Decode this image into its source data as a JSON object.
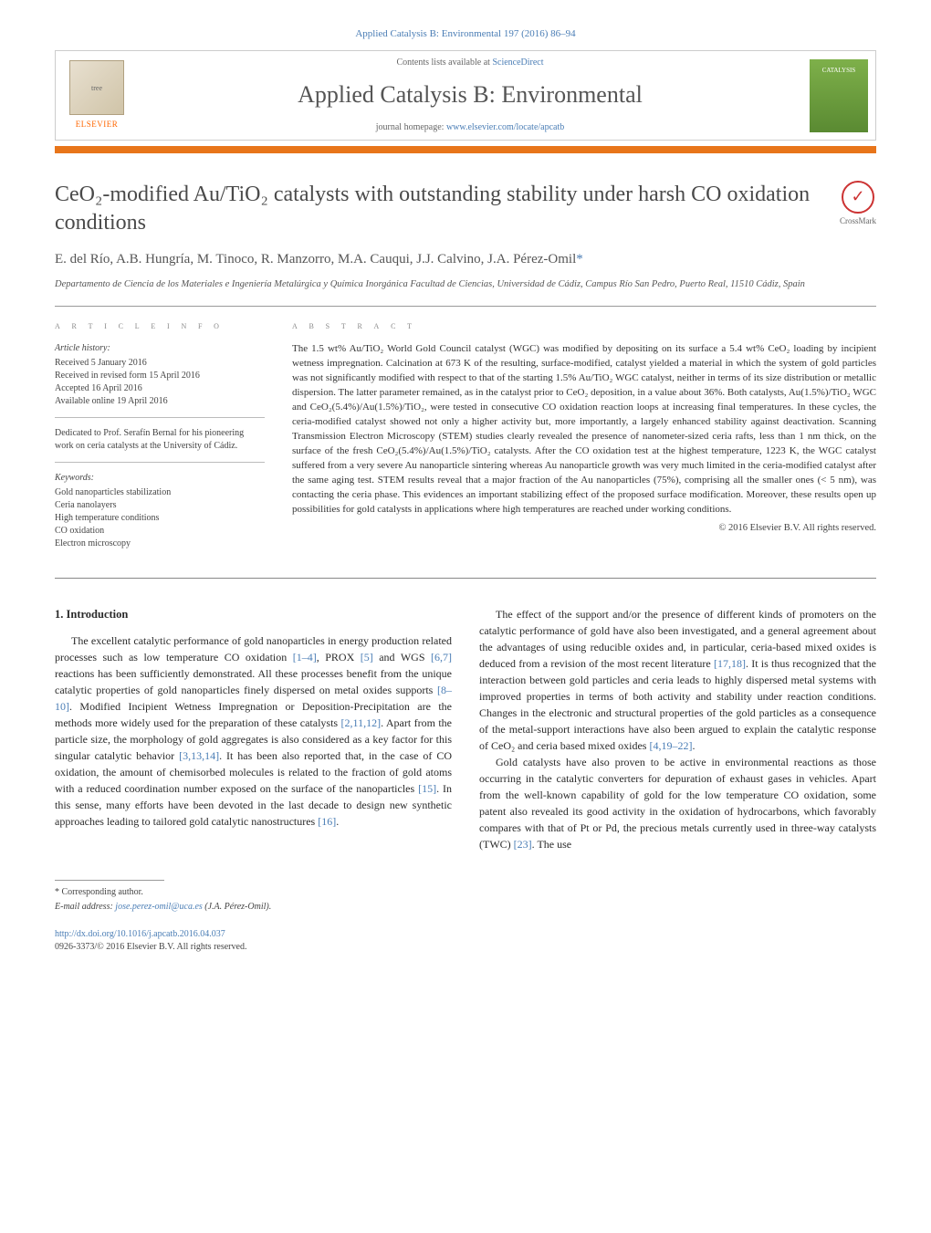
{
  "journal_ref": "Applied Catalysis B: Environmental 197 (2016) 86–94",
  "header": {
    "contents_prefix": "Contents lists available at ",
    "contents_link": "ScienceDirect",
    "journal_title": "Applied Catalysis B: Environmental",
    "homepage_prefix": "journal homepage: ",
    "homepage_link": "www.elsevier.com/locate/apcatb",
    "elsevier_label": "ELSEVIER",
    "cover_label": "CATALYSIS"
  },
  "crossmark": "CrossMark",
  "title": "CeO₂-modified Au/TiO₂ catalysts with outstanding stability under harsh CO oxidation conditions",
  "authors": "E. del Río, A.B. Hungría, M. Tinoco, R. Manzorro, M.A. Cauqui, J.J. Calvino, J.A. Pérez-Omil",
  "corresponding_mark": "*",
  "affiliation": "Departamento de Ciencia de los Materiales e Ingeniería Metalúrgica y Química Inorgánica Facultad de Ciencias, Universidad de Cádiz, Campus Río San Pedro, Puerto Real, 11510 Cádiz, Spain",
  "info_heading": "a r t i c l e   i n f o",
  "abstract_heading": "a b s t r a c t",
  "history": {
    "label": "Article history:",
    "items": [
      "Received 5 January 2016",
      "Received in revised form 15 April 2016",
      "Accepted 16 April 2016",
      "Available online 19 April 2016"
    ]
  },
  "dedication": "Dedicated to Prof. Serafín Bernal for his pioneering work on ceria catalysts at the University of Cádiz.",
  "keywords": {
    "label": "Keywords:",
    "items": [
      "Gold nanoparticles stabilization",
      "Ceria nanolayers",
      "High temperature conditions",
      "CO oxidation",
      "Electron microscopy"
    ]
  },
  "abstract": "The 1.5 wt% Au/TiO₂ World Gold Council catalyst (WGC) was modified by depositing on its surface a 5.4 wt% CeO₂ loading by incipient wetness impregnation. Calcination at 673 K of the resulting, surface-modified, catalyst yielded a material in which the system of gold particles was not significantly modified with respect to that of the starting 1.5% Au/TiO₂ WGC catalyst, neither in terms of its size distribution or metallic dispersion. The latter parameter remained, as in the catalyst prior to CeO₂ deposition, in a value about 36%. Both catalysts, Au(1.5%)/TiO₂ WGC and CeO₂(5.4%)/Au(1.5%)/TiO₂, were tested in consecutive CO oxidation reaction loops at increasing final temperatures. In these cycles, the ceria-modified catalyst showed not only a higher activity but, more importantly, a largely enhanced stability against deactivation. Scanning Transmission Electron Microscopy (STEM) studies clearly revealed the presence of nanometer-sized ceria rafts, less than 1 nm thick, on the surface of the fresh CeO₂(5.4%)/Au(1.5%)/TiO₂ catalysts. After the CO oxidation test at the highest temperature, 1223 K, the WGC catalyst suffered from a very severe Au nanoparticle sintering whereas Au nanoparticle growth was very much limited in the ceria-modified catalyst after the same aging test. STEM results reveal that a major fraction of the Au nanoparticles (75%), comprising all the smaller ones (< 5 nm), was contacting the ceria phase. This evidences an important stabilizing effect of the proposed surface modification. Moreover, these results open up possibilities for gold catalysts in applications where high temperatures are reached under working conditions.",
  "copyright": "© 2016 Elsevier B.V. All rights reserved.",
  "section1": {
    "heading": "1. Introduction",
    "p1_a": "The excellent catalytic performance of gold nanoparticles in energy production related processes such as low temperature CO oxidation ",
    "p1_ref1": "[1–4]",
    "p1_b": ", PROX ",
    "p1_ref2": "[5]",
    "p1_c": " and WGS ",
    "p1_ref3": "[6,7]",
    "p1_d": " reactions has been sufficiently demonstrated. All these processes benefit from the unique catalytic properties of gold nanoparticles finely dispersed on metal oxides supports ",
    "p1_ref4": "[8–10]",
    "p1_e": ". Modified Incipient Wetness Impregnation or Deposition-Precipitation are the methods more widely used for the preparation of these catalysts ",
    "p1_ref5": "[2,11,12]",
    "p1_f": ". Apart from the particle size, the morphology of gold aggregates is also considered as a key factor for this singular catalytic behavior ",
    "p1_ref6": "[3,13,14]",
    "p1_g": ". It has been also reported that, in the case of CO oxidation, the amount of chemisorbed molecules is related to the fraction of gold atoms with a reduced coordination number exposed on the surface of the nanoparticles ",
    "p1_ref7": "[15]",
    "p1_h": ". In this sense, many efforts have been devoted",
    "p2_a": "in the last decade to design new synthetic approaches leading to tailored gold catalytic nanostructures ",
    "p2_ref1": "[16]",
    "p2_b": ".",
    "p3_a": "The effect of the support and/or the presence of different kinds of promoters on the catalytic performance of gold have also been investigated, and a general agreement about the advantages of using reducible oxides and, in particular, ceria-based mixed oxides is deduced from a revision of the most recent literature ",
    "p3_ref1": "[17,18]",
    "p3_b": ". It is thus recognized that the interaction between gold particles and ceria leads to highly dispersed metal systems with improved properties in terms of both activity and stability under reaction conditions. Changes in the electronic and structural properties of the gold particles as a consequence of the metal-support interactions have also been argued to explain the catalytic response of CeO₂ and ceria based mixed oxides ",
    "p3_ref2": "[4,19–22]",
    "p3_c": ".",
    "p4_a": "Gold catalysts have also proven to be active in environmental reactions as those occurring in the catalytic converters for depuration of exhaust gases in vehicles. Apart from the well-known capability of gold for the low temperature CO oxidation, some patent also revealed its good activity in the oxidation of hydrocarbons, which favorably compares with that of Pt or Pd, the precious metals currently used in three-way catalysts (TWC) ",
    "p4_ref1": "[23]",
    "p4_b": ". The use"
  },
  "footer": {
    "corresponding": "* Corresponding author.",
    "email_label": "E-mail address: ",
    "email": "jose.perez-omil@uca.es",
    "email_name": " (J.A. Pérez-Omil).",
    "doi": "http://dx.doi.org/10.1016/j.apcatb.2016.04.037",
    "issn": "0926-3373/© 2016 Elsevier B.V. All rights reserved."
  },
  "colors": {
    "link": "#4a7db5",
    "orange_bar": "#e8751a",
    "text": "#333333",
    "heading_gray": "#888888"
  }
}
